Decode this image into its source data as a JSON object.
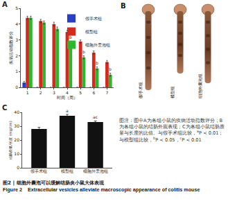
{
  "chart_data": [
    {
      "panel": "A",
      "type": "bar",
      "x": [
        1,
        2,
        3,
        4,
        5,
        6,
        7
      ],
      "xlabel": "时间（周）",
      "ylabel": "疾病活动指数评分",
      "xlim": [
        0.5,
        7.5
      ],
      "xticks": [
        1,
        2,
        3,
        4,
        5,
        6,
        7
      ],
      "ylim": [
        0,
        5
      ],
      "yticks": [
        0,
        1,
        2,
        3,
        4,
        5
      ],
      "legend": "top right",
      "series": [
        {
          "name": "假手术组",
          "color": "#2b3fc4",
          "values": [
            0.3,
            0,
            0,
            0,
            0,
            0,
            0
          ],
          "errors": [
            0.08,
            0,
            0,
            0,
            0,
            0,
            0
          ]
        },
        {
          "name": "模型组",
          "color": "#d42a1e",
          "values": [
            4.4,
            4.2,
            4.0,
            3.5,
            2.9,
            2.2,
            1.6
          ],
          "errors": [
            0.1,
            0.1,
            0.12,
            0.12,
            0.1,
            0.1,
            0.1
          ]
        },
        {
          "name": "细胞外囊泡组",
          "color": "#2fb52f",
          "values": [
            4.4,
            4.1,
            3.7,
            2.8,
            1.9,
            1.2,
            0.8
          ],
          "errors": [
            0.1,
            0.1,
            0.12,
            0.12,
            0.1,
            0.1,
            0.1
          ]
        }
      ],
      "annotations": [
        {
          "x": 4,
          "series": "细胞外囊泡组",
          "text": "b"
        },
        {
          "x": 5,
          "series": "细胞外囊泡组",
          "text": "b"
        },
        {
          "x": 6,
          "series": "细胞外囊泡组",
          "text": "b"
        },
        {
          "x": 7,
          "series": "细胞外囊泡组",
          "text": "b"
        }
      ]
    },
    {
      "panel": "C",
      "type": "bar",
      "categories": [
        "假手术组",
        "模型组",
        "细胞外囊泡组"
      ],
      "values": [
        28,
        37.5,
        33
      ],
      "errors": [
        1.2,
        1,
        0.8
      ],
      "color": "#111111",
      "ylabel": "结肠质量/长度 (mg/cm)",
      "ylim": [
        0,
        40
      ],
      "yticks": [
        0,
        10,
        20,
        30,
        40
      ],
      "annotations": [
        {
          "category": "模型组",
          "text": "a"
        },
        {
          "category": "细胞外囊泡组",
          "text": "ac"
        }
      ]
    }
  ],
  "panel_b": {
    "panel": "B",
    "labels": [
      "假手术组",
      "模型组",
      "细胞外囊泡组"
    ]
  },
  "caption": [
    {
      "text": "图注：图中A为各组小鼠的疾病活动指数评分；B为各组小鼠的结肠外观表现；C为各组小鼠结肠质量与长度的比值。与假手术组比较，",
      "sup": false
    },
    {
      "text": "a",
      "sup": true
    },
    {
      "text": "P < 0.01；与模型组比较，",
      "sup": false
    },
    {
      "text": "b",
      "sup": true
    },
    {
      "text": "P < 0.05，",
      "sup": false
    },
    {
      "text": "c",
      "sup": true
    },
    {
      "text": "P < 0.01",
      "sup": false
    }
  ],
  "figure_title": {
    "zh": "图2 | 细胞外囊泡可以缓解结肠炎小鼠大体表现",
    "en_label": "Figure 2",
    "en": "Extracellular vesicles alleviate macroscopic appearance of colitis mouse"
  }
}
